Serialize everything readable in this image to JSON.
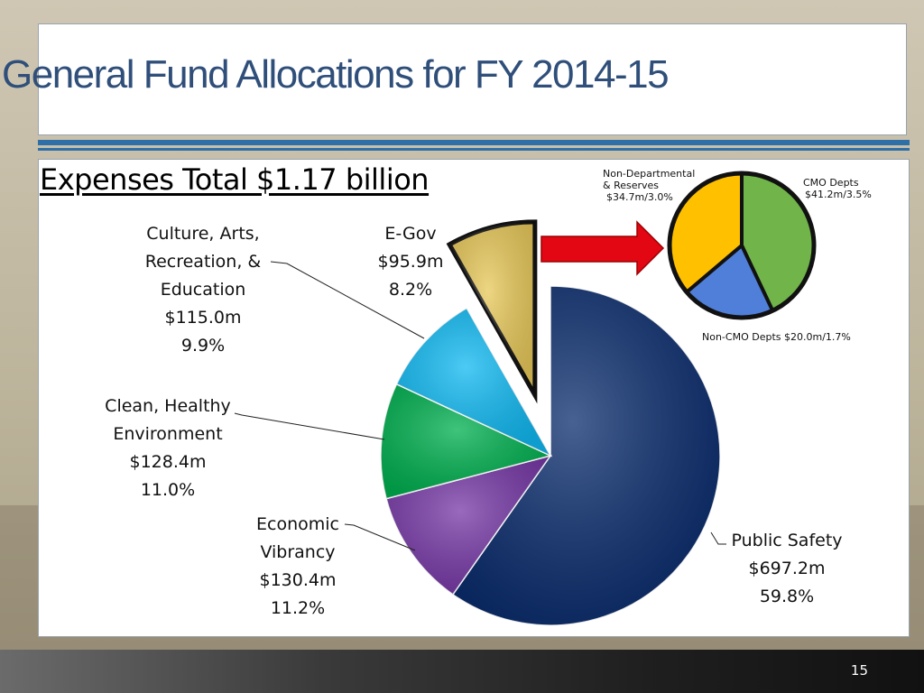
{
  "slide": {
    "title": "General Fund Allocations for FY 2014-15",
    "subtitle": "Expenses Total $1.17 billion",
    "page_number": "15"
  },
  "chart_data": [
    {
      "type": "pie",
      "categories": [
        "Public Safety",
        "Economic Vibrancy",
        "Clean, Healthy Environment",
        "Culture, Arts, Recreation, & Education",
        "E-Gov"
      ],
      "values": [
        697.2,
        130.4,
        128.4,
        115.0,
        95.9
      ],
      "percent": [
        59.8,
        11.2,
        11.0,
        9.9,
        8.2
      ],
      "unit": "$m",
      "colors": [
        "#0b2d6e",
        "#7638a6",
        "#00b050",
        "#10b9f2",
        "#e8c95a"
      ],
      "exploded": "E-Gov",
      "labels": [
        {
          "id": "public-safety",
          "lines": [
            "Public Safety",
            "$697.2m",
            "59.8%"
          ]
        },
        {
          "id": "economic-vibrancy",
          "lines": [
            "Economic",
            "Vibrancy",
            "$130.4m",
            "11.2%"
          ]
        },
        {
          "id": "clean-healthy",
          "lines": [
            "Clean, Healthy",
            "Environment",
            "$128.4m",
            "11.0%"
          ]
        },
        {
          "id": "culture-arts",
          "lines": [
            "Culture, Arts,",
            "Recreation, &",
            "Education",
            "$115.0m",
            "9.9%"
          ]
        },
        {
          "id": "egov",
          "lines": [
            "E-Gov",
            "$95.9m",
            "8.2%"
          ]
        }
      ]
    },
    {
      "type": "pie",
      "categories": [
        "CMO Depts",
        "Non-CMO Depts",
        "Non-Departmental & Reserves"
      ],
      "values": [
        41.2,
        20.0,
        34.7
      ],
      "percent": [
        3.5,
        1.7,
        3.0
      ],
      "unit": "$m",
      "colors": [
        "#70b44a",
        "#4f7fd8",
        "#ffc000"
      ],
      "labels": [
        {
          "id": "cmo",
          "lines": [
            "CMO Depts",
            "$41.2m/3.5%"
          ]
        },
        {
          "id": "non-cmo",
          "lines": [
            "Non-CMO Depts $20.0m/1.7%"
          ]
        },
        {
          "id": "non-dept",
          "lines": [
            "Non-Departmental",
            "& Reserves",
            "$34.7m/3.0%"
          ]
        }
      ]
    }
  ]
}
